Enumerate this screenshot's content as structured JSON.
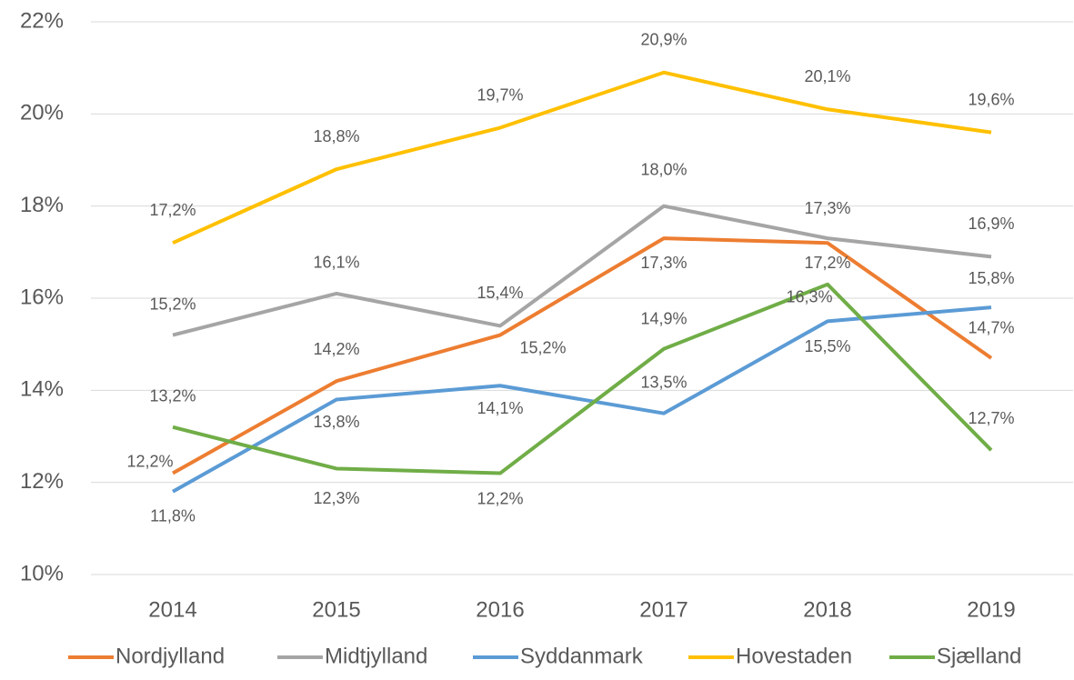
{
  "chart_data": {
    "type": "line",
    "categories": [
      "2014",
      "2015",
      "2016",
      "2017",
      "2018",
      "2019"
    ],
    "ylim": [
      10,
      22
    ],
    "yticks": [
      {
        "value": 10,
        "label": "10%"
      },
      {
        "value": 12,
        "label": "12%"
      },
      {
        "value": 14,
        "label": "14%"
      },
      {
        "value": 16,
        "label": "16%"
      },
      {
        "value": 18,
        "label": "18%"
      },
      {
        "value": 20,
        "label": "20%"
      },
      {
        "value": 22,
        "label": "22%"
      }
    ],
    "grid": true,
    "legend": "bottom",
    "series": [
      {
        "name": "Nordjylland",
        "color": "#ed7d31",
        "values": [
          12.2,
          14.2,
          15.2,
          17.3,
          17.2,
          14.7
        ],
        "value_labels": [
          "12,2%",
          "14,2%",
          "15,2%",
          "17,3%",
          "17,2%",
          "14,7%"
        ]
      },
      {
        "name": "Midtjylland",
        "color": "#a5a5a5",
        "values": [
          15.2,
          16.1,
          15.4,
          18.0,
          17.3,
          16.9
        ],
        "value_labels": [
          "15,2%",
          "16,1%",
          "15,4%",
          "18,0%",
          "17,3%",
          "16,9%"
        ]
      },
      {
        "name": "Syddanmark",
        "color": "#5b9bd5",
        "values": [
          11.8,
          13.8,
          14.1,
          13.5,
          15.5,
          15.8
        ],
        "value_labels": [
          "11,8%",
          "13,8%",
          "14,1%",
          "13,5%",
          "15,5%",
          "15,8%"
        ]
      },
      {
        "name": "Hovestaden",
        "color": "#ffc000",
        "values": [
          17.2,
          18.8,
          19.7,
          20.9,
          20.1,
          19.6
        ],
        "value_labels": [
          "17,2%",
          "18,8%",
          "19,7%",
          "20,9%",
          "20,1%",
          "19,6%"
        ]
      },
      {
        "name": "Sjælland",
        "color": "#70ad47",
        "values": [
          13.2,
          12.3,
          12.2,
          14.9,
          16.3,
          12.7
        ],
        "value_labels": [
          "13,2%",
          "12,3%",
          "12,2%",
          "14,9%",
          "16,3%",
          "12,7%"
        ]
      }
    ]
  }
}
